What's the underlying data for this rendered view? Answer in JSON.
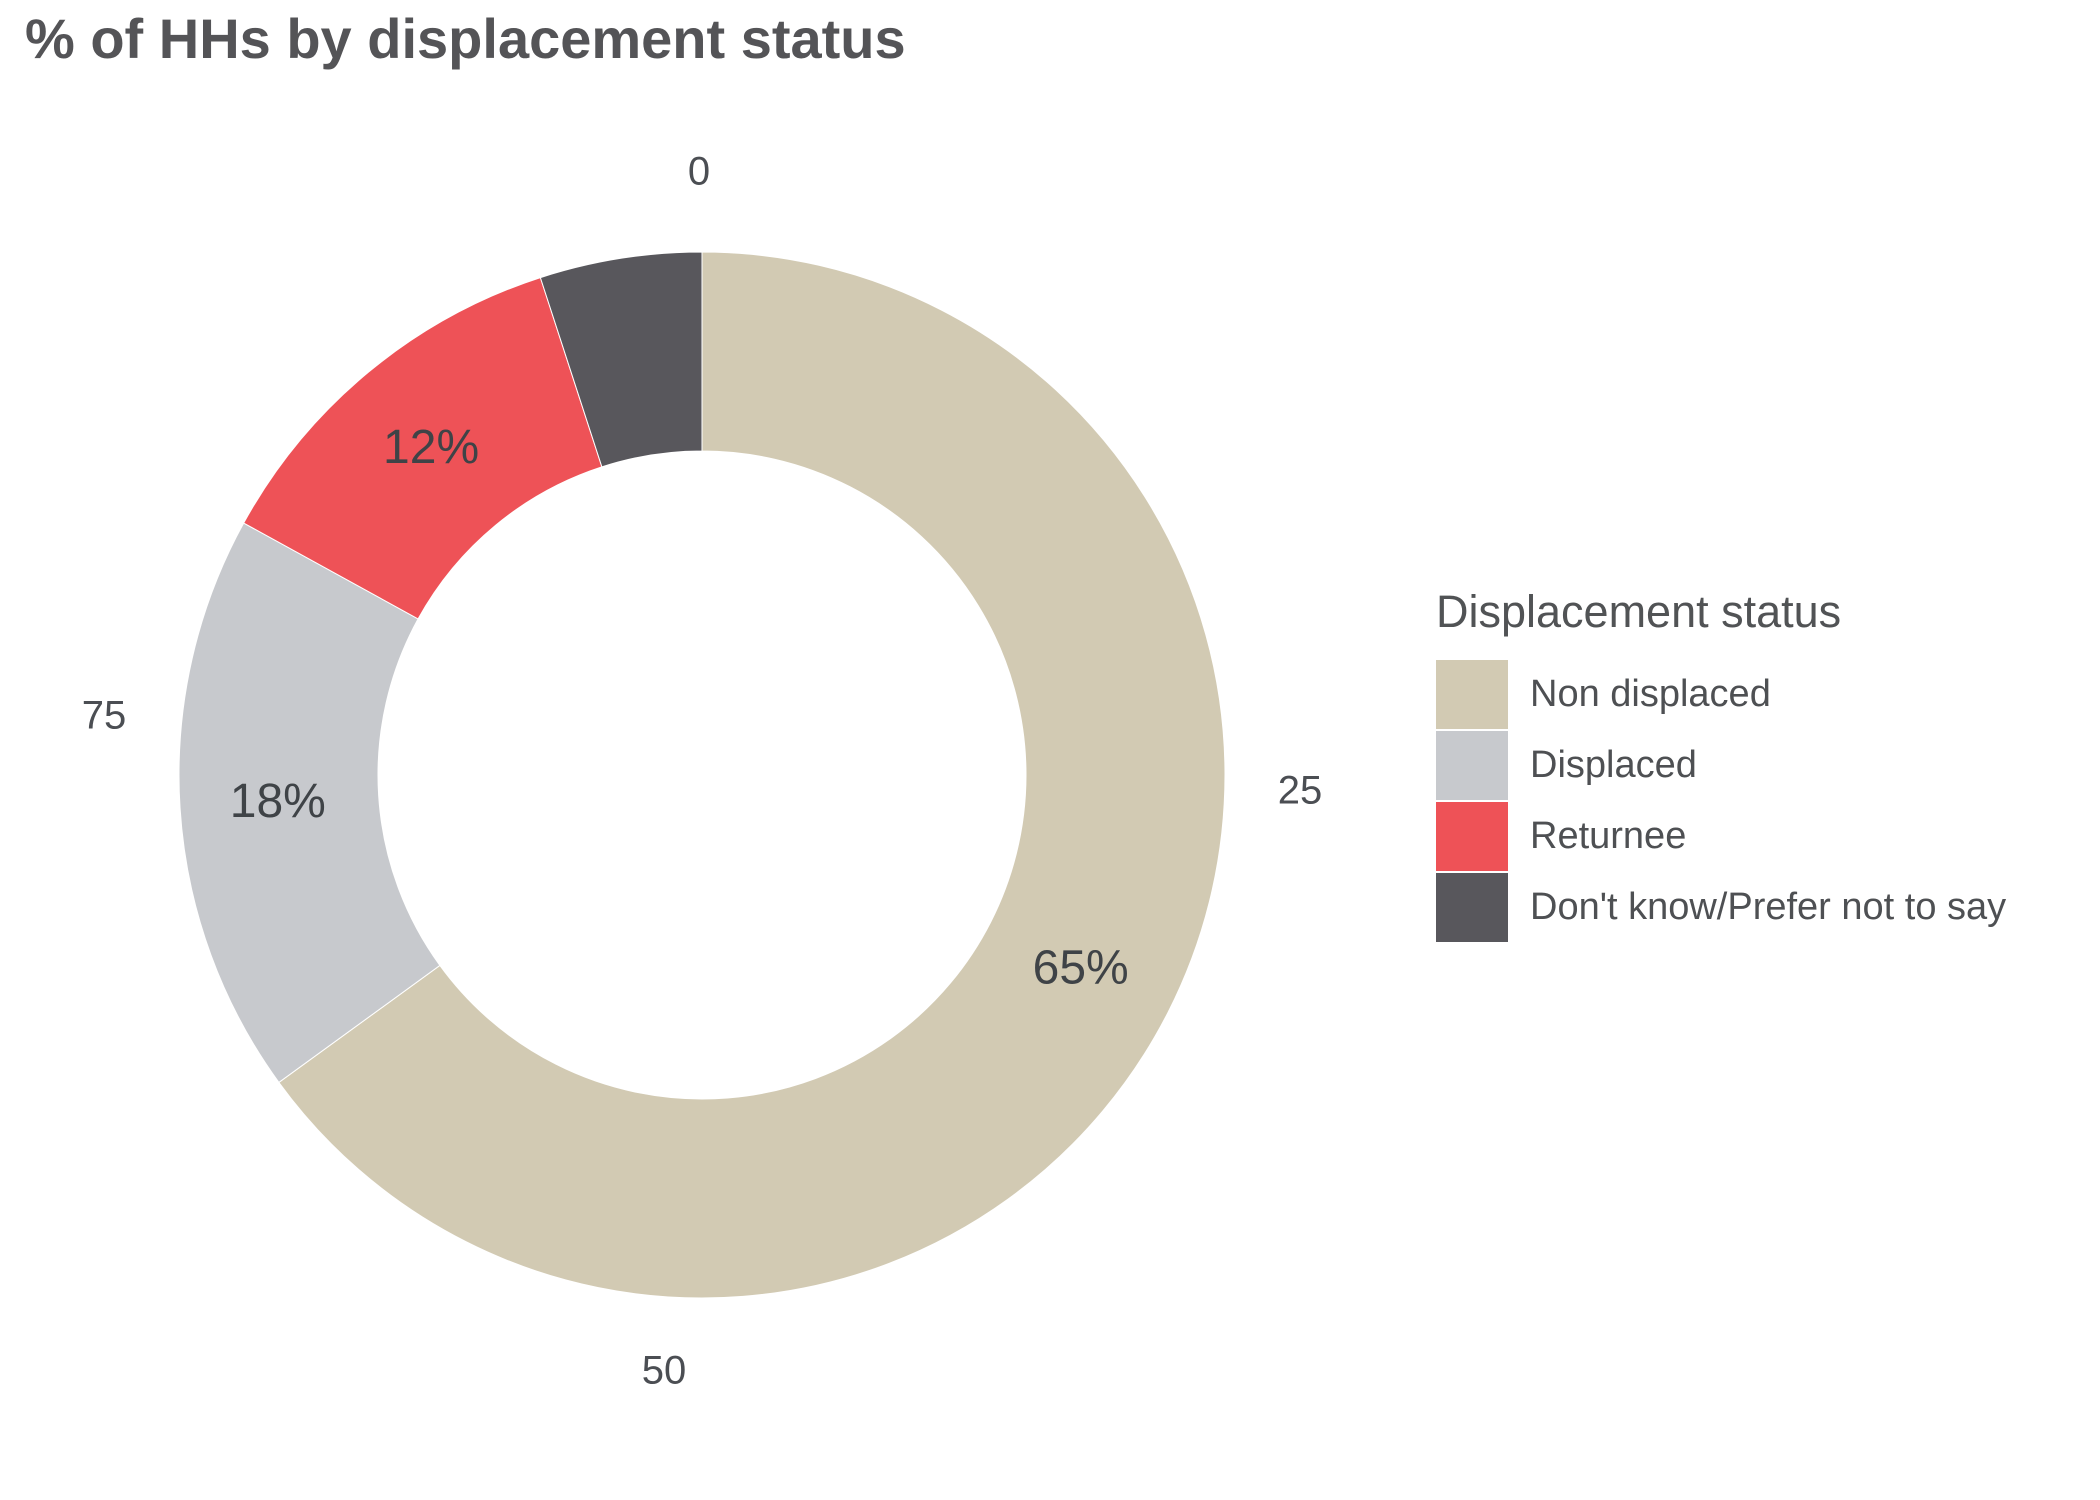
{
  "chart_data": {
    "type": "pie",
    "subtype": "donut",
    "title": "% of HHs by displacement status",
    "legend_title": "Displacement status",
    "legend_position": "right",
    "unit": "%",
    "grid": false,
    "axis_ticks": [
      "0",
      "25",
      "50",
      "75"
    ],
    "slices": [
      {
        "label": "Non displaced",
        "value": 65,
        "value_label": "65%",
        "color": "#d2cab3"
      },
      {
        "label": "Displaced",
        "value": 18,
        "value_label": "18%",
        "color": "#c7c9cd"
      },
      {
        "label": "Returnee",
        "value": 12,
        "value_label": "12%",
        "color": "#ee5257"
      },
      {
        "label": "Don't know/Prefer not to say",
        "value": 5,
        "value_label": "",
        "color": "#58575c"
      }
    ]
  }
}
